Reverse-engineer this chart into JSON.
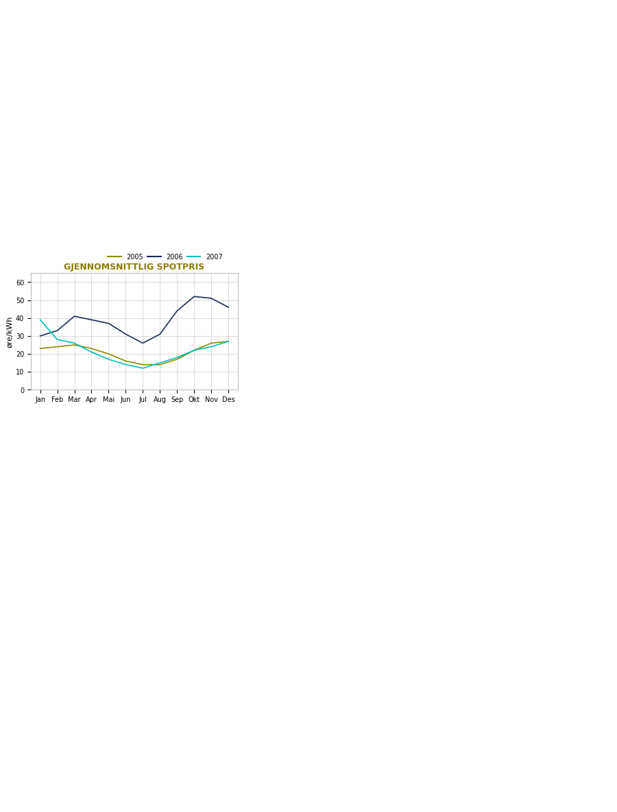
{
  "title": "GJENNOMSNITTLIG SPOTPRIS",
  "title_color": "#8B7D00",
  "ylabel": "øre/kWh",
  "ylim": [
    0,
    65
  ],
  "yticks": [
    0,
    10,
    20,
    30,
    40,
    50,
    60
  ],
  "months": [
    "Jan",
    "Feb",
    "Mar",
    "Apr",
    "Mai",
    "Jun",
    "Jul",
    "Aug",
    "Sep",
    "Okt",
    "Nov",
    "Des"
  ],
  "series": {
    "2005": {
      "color": "#8B8B00",
      "values": [
        23,
        24,
        25,
        23,
        20,
        16,
        14,
        14,
        17,
        22,
        26,
        27
      ]
    },
    "2006": {
      "color": "#1a2d5a",
      "values": [
        30,
        33,
        41,
        39,
        37,
        31,
        26,
        31,
        44,
        52,
        51,
        46
      ]
    },
    "2007": {
      "color": "#00BFBF",
      "values": [
        39,
        28,
        26,
        21,
        17,
        14,
        12,
        15,
        18,
        22,
        24,
        27
      ]
    }
  },
  "legend_labels": [
    "2005",
    "2006",
    "2007"
  ],
  "background_color": "#ffffff",
  "grid_color": "#cccccc",
  "border_color": "#999999",
  "title_fontsize": 11,
  "axis_label_fontsize": 9,
  "tick_fontsize": 9,
  "legend_fontsize": 9
}
